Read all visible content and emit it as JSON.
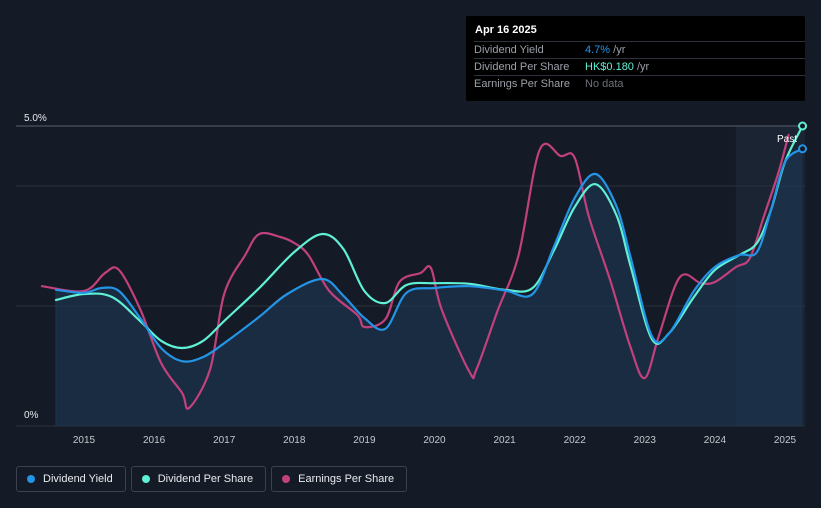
{
  "tooltip": {
    "date": "Apr 16 2025",
    "rows": [
      {
        "label": "Dividend Yield",
        "value": "4.7%",
        "unit": " /yr",
        "color": "#2394e6"
      },
      {
        "label": "Dividend Per Share",
        "value": "HK$0.180",
        "unit": " /yr",
        "color": "#5ff0d5"
      },
      {
        "label": "Earnings Per Share",
        "value": "No data",
        "unit": "",
        "color": "#6c7078"
      }
    ]
  },
  "legend": [
    {
      "label": "Dividend Yield",
      "color": "#2394e6"
    },
    {
      "label": "Dividend Per Share",
      "color": "#5ff0d5"
    },
    {
      "label": "Earnings Per Share",
      "color": "#c1407e"
    }
  ],
  "chart_data": {
    "type": "line",
    "ylim": [
      0,
      5.0
    ],
    "y_tick_labels": [
      "5.0%",
      "0%"
    ],
    "xlim": [
      2014.4,
      2025.3
    ],
    "x_ticks": [
      2015,
      2016,
      2017,
      2018,
      2019,
      2020,
      2021,
      2022,
      2023,
      2024,
      2025
    ],
    "past_label": "Past",
    "past_region_start": 2024.3,
    "series": [
      {
        "name": "Dividend Yield",
        "color": "#2394e6",
        "points": [
          [
            2014.6,
            2.27
          ],
          [
            2015.0,
            2.22
          ],
          [
            2015.25,
            2.3
          ],
          [
            2015.5,
            2.25
          ],
          [
            2015.8,
            1.8
          ],
          [
            2016.1,
            1.3
          ],
          [
            2016.4,
            1.08
          ],
          [
            2016.7,
            1.15
          ],
          [
            2017.0,
            1.38
          ],
          [
            2017.5,
            1.82
          ],
          [
            2017.9,
            2.2
          ],
          [
            2018.4,
            2.45
          ],
          [
            2018.7,
            2.17
          ],
          [
            2019.0,
            1.8
          ],
          [
            2019.3,
            1.62
          ],
          [
            2019.6,
            2.22
          ],
          [
            2020.0,
            2.3
          ],
          [
            2020.5,
            2.33
          ],
          [
            2021.0,
            2.26
          ],
          [
            2021.4,
            2.2
          ],
          [
            2021.7,
            2.98
          ],
          [
            2022.0,
            3.8
          ],
          [
            2022.3,
            4.2
          ],
          [
            2022.6,
            3.65
          ],
          [
            2022.8,
            2.8
          ],
          [
            2023.1,
            1.5
          ],
          [
            2023.35,
            1.55
          ],
          [
            2023.7,
            2.25
          ],
          [
            2024.0,
            2.65
          ],
          [
            2024.35,
            2.85
          ],
          [
            2024.6,
            2.9
          ],
          [
            2024.8,
            3.6
          ],
          [
            2025.0,
            4.4
          ],
          [
            2025.25,
            4.62
          ]
        ]
      },
      {
        "name": "Dividend Per Share",
        "color": "#5ff0d5",
        "points": [
          [
            2014.6,
            2.1
          ],
          [
            2015.0,
            2.2
          ],
          [
            2015.4,
            2.15
          ],
          [
            2015.8,
            1.75
          ],
          [
            2016.1,
            1.42
          ],
          [
            2016.4,
            1.3
          ],
          [
            2016.7,
            1.42
          ],
          [
            2017.0,
            1.75
          ],
          [
            2017.5,
            2.3
          ],
          [
            2018.0,
            2.9
          ],
          [
            2018.4,
            3.2
          ],
          [
            2018.7,
            2.95
          ],
          [
            2019.0,
            2.25
          ],
          [
            2019.3,
            2.05
          ],
          [
            2019.6,
            2.35
          ],
          [
            2020.0,
            2.38
          ],
          [
            2020.5,
            2.37
          ],
          [
            2021.0,
            2.27
          ],
          [
            2021.4,
            2.3
          ],
          [
            2021.7,
            2.92
          ],
          [
            2022.0,
            3.65
          ],
          [
            2022.3,
            4.03
          ],
          [
            2022.6,
            3.5
          ],
          [
            2022.8,
            2.65
          ],
          [
            2023.1,
            1.45
          ],
          [
            2023.35,
            1.55
          ],
          [
            2023.7,
            2.15
          ],
          [
            2024.0,
            2.6
          ],
          [
            2024.35,
            2.85
          ],
          [
            2024.6,
            3.05
          ],
          [
            2024.8,
            3.6
          ],
          [
            2025.0,
            4.4
          ],
          [
            2025.25,
            5.0
          ]
        ]
      },
      {
        "name": "Earnings Per Share",
        "color": "#c1407e",
        "points": [
          [
            2014.4,
            2.33
          ],
          [
            2015.0,
            2.25
          ],
          [
            2015.3,
            2.55
          ],
          [
            2015.5,
            2.6
          ],
          [
            2015.8,
            1.95
          ],
          [
            2016.1,
            1.05
          ],
          [
            2016.4,
            0.55
          ],
          [
            2016.5,
            0.3
          ],
          [
            2016.8,
            0.95
          ],
          [
            2017.0,
            2.2
          ],
          [
            2017.3,
            2.85
          ],
          [
            2017.5,
            3.2
          ],
          [
            2017.8,
            3.15
          ],
          [
            2018.0,
            3.05
          ],
          [
            2018.2,
            2.85
          ],
          [
            2018.5,
            2.25
          ],
          [
            2018.9,
            1.85
          ],
          [
            2019.0,
            1.65
          ],
          [
            2019.3,
            1.78
          ],
          [
            2019.5,
            2.4
          ],
          [
            2019.8,
            2.55
          ],
          [
            2019.95,
            2.63
          ],
          [
            2020.1,
            1.95
          ],
          [
            2020.5,
            0.9
          ],
          [
            2020.6,
            0.95
          ],
          [
            2020.9,
            1.92
          ],
          [
            2021.2,
            2.85
          ],
          [
            2021.5,
            4.6
          ],
          [
            2021.8,
            4.5
          ],
          [
            2022.0,
            4.47
          ],
          [
            2022.2,
            3.5
          ],
          [
            2022.5,
            2.45
          ],
          [
            2022.8,
            1.3
          ],
          [
            2023.0,
            0.8
          ],
          [
            2023.2,
            1.5
          ],
          [
            2023.5,
            2.48
          ],
          [
            2023.8,
            2.38
          ],
          [
            2024.0,
            2.4
          ],
          [
            2024.3,
            2.65
          ],
          [
            2024.5,
            2.8
          ],
          [
            2024.7,
            3.5
          ],
          [
            2024.9,
            4.2
          ],
          [
            2025.05,
            4.85
          ]
        ]
      }
    ]
  }
}
